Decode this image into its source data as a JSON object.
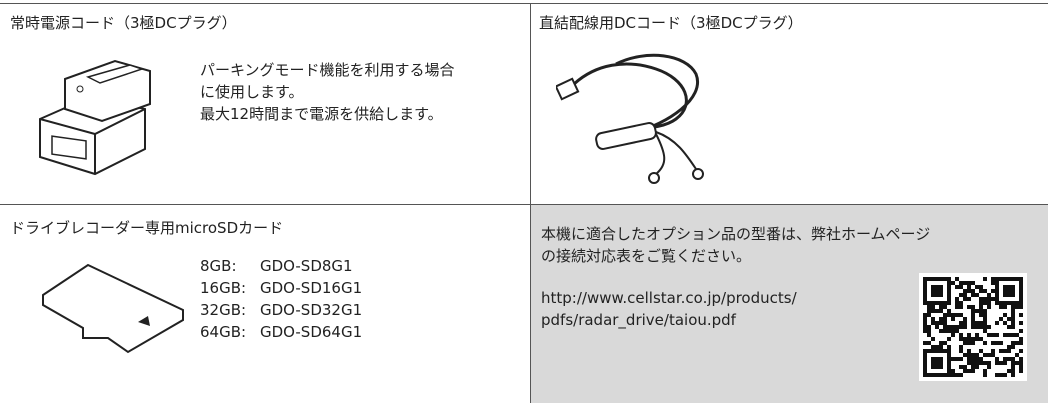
{
  "cells": [
    {
      "title": "常時電源コード（3極DCプラグ）",
      "lines": [
        "パーキングモード機能を利用する場合",
        "に使用します。",
        "最大12時間まで電源を供給します。"
      ]
    },
    {
      "title": "直結配線用DCコード（3極DCプラグ）"
    },
    {
      "title": "ドライブレコーダー専用microSDカード",
      "items": [
        {
          "size": "8GB:",
          "model": "GDO-SD8G1"
        },
        {
          "size": "16GB:",
          "model": "GDO-SD16G1"
        },
        {
          "size": "32GB:",
          "model": "GDO-SD32G1"
        },
        {
          "size": "64GB:",
          "model": "GDO-SD64G1"
        }
      ]
    },
    {
      "lines": [
        "本機に適合したオプション品の型番は、弊社ホームページ",
        "の接続対応表をご覧ください。"
      ],
      "url": [
        "http://www.cellstar.co.jp/products/",
        "pdfs/radar_drive/taiou.pdf"
      ]
    }
  ]
}
